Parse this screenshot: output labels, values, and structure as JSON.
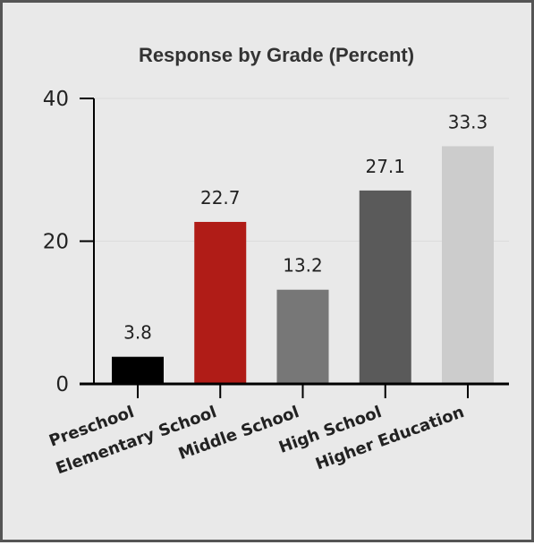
{
  "chart_data": {
    "type": "bar",
    "title": "Response by Grade (Percent)",
    "categories": [
      "Preschool",
      "Elementary School",
      "Middle School",
      "High School",
      "Higher Education"
    ],
    "values": [
      3.8,
      22.7,
      13.2,
      27.1,
      33.3
    ],
    "value_labels": [
      "3.8",
      "22.7",
      "13.2",
      "27.1",
      "33.3"
    ],
    "colors": [
      "#000000",
      "#b01c17",
      "#777777",
      "#5a5a5a",
      "#cccccc"
    ],
    "ylim": [
      0,
      40
    ],
    "yticks": [
      "0",
      "20",
      "40"
    ],
    "grid": true,
    "xlabel": "",
    "ylabel": ""
  }
}
